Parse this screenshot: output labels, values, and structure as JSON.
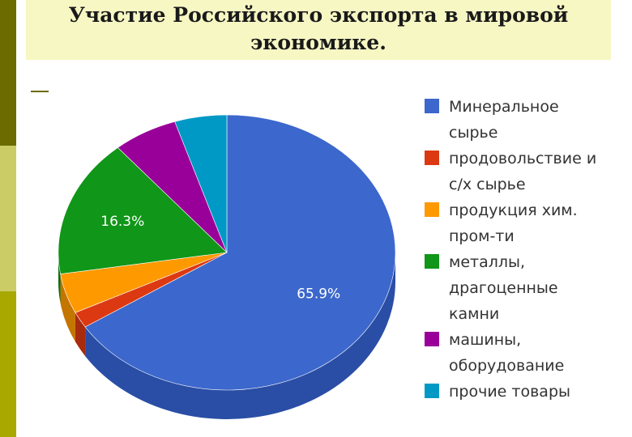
{
  "slide": {
    "title": "Участие Российского экспорта в мировой экономике.",
    "bar_colors": [
      "#6b6b00",
      "#cccc66",
      "#a8a800"
    ],
    "title_bg": "#f7f7c4"
  },
  "chart_data": {
    "type": "pie",
    "title": "",
    "start_angle_deg": 90,
    "direction": "clockwise",
    "slices": [
      {
        "label": "Минеральное сырье",
        "legend_lines": [
          "Минеральное",
          "сырье"
        ],
        "value": 65.9,
        "color": "#3c67cc",
        "side_color": "#2a4ea6",
        "show_value": true
      },
      {
        "label": "продовольствие и с/х сырье",
        "legend_lines": [
          "продовольствие и",
          "с/х сырье"
        ],
        "value": 1.9,
        "color": "#dc3912",
        "side_color": "#a82b0d",
        "show_value": false
      },
      {
        "label": "продукция хим. пром-ти",
        "legend_lines": [
          "продукция хим.",
          "пром-ти"
        ],
        "value": 4.7,
        "color": "#ff9900",
        "side_color": "#c47500",
        "show_value": false
      },
      {
        "label": "металлы, драгоценные камни",
        "legend_lines": [
          "металлы,",
          "драгоценные",
          "камни"
        ],
        "value": 16.3,
        "color": "#109618",
        "side_color": "#0b6e11",
        "show_value": true
      },
      {
        "label": "машины, оборудование",
        "legend_lines": [
          "машины,",
          "оборудование"
        ],
        "value": 6.2,
        "color": "#990099",
        "side_color": "#700070",
        "show_value": false
      },
      {
        "label": "прочие товары",
        "legend_lines": [
          "прочие товары"
        ],
        "value": 5.0,
        "color": "#0099c6",
        "side_color": "#007294",
        "show_value": false
      }
    ],
    "value_labels": [
      "65.9%",
      "16.3%"
    ],
    "legend_position": "right"
  }
}
